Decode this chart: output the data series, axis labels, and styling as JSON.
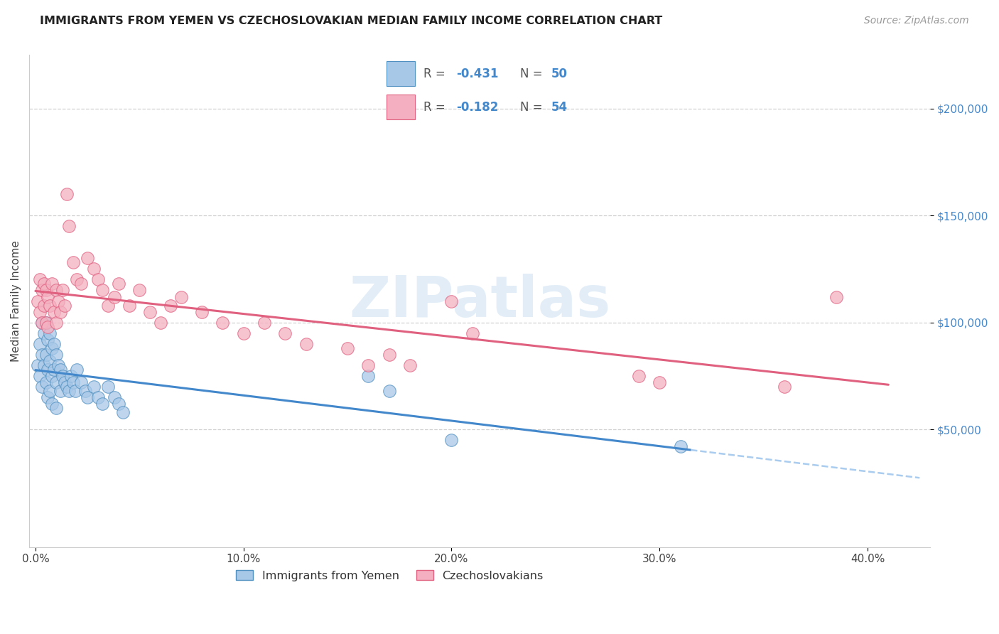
{
  "title": "IMMIGRANTS FROM YEMEN VS CZECHOSLOVAKIAN MEDIAN FAMILY INCOME CORRELATION CHART",
  "source": "Source: ZipAtlas.com",
  "ylabel": "Median Family Income",
  "xlabel_ticks": [
    "0.0%",
    "10.0%",
    "20.0%",
    "30.0%",
    "40.0%"
  ],
  "xlabel_vals": [
    0.0,
    0.1,
    0.2,
    0.3,
    0.4
  ],
  "ytick_labels": [
    "$50,000",
    "$100,000",
    "$150,000",
    "$200,000"
  ],
  "ytick_vals": [
    50000,
    100000,
    150000,
    200000
  ],
  "ylim": [
    -5000,
    225000
  ],
  "xlim": [
    -0.003,
    0.43
  ],
  "watermark": "ZIPatlas",
  "legend_entry1_R": "-0.431",
  "legend_entry1_N": "50",
  "legend_entry1_label": "Immigrants from Yemen",
  "legend_entry2_R": "-0.182",
  "legend_entry2_N": "54",
  "legend_entry2_label": "Czechoslovakians",
  "color_blue_fill": "#a8c8e8",
  "color_pink_fill": "#f4b0c0",
  "color_blue_edge": "#5090c0",
  "color_pink_edge": "#e06080",
  "color_blue_line": "#4488cc",
  "color_pink_line": "#e06080",
  "color_dashed": "#aaccee",
  "yemen_x": [
    0.001,
    0.002,
    0.002,
    0.003,
    0.003,
    0.003,
    0.004,
    0.004,
    0.005,
    0.005,
    0.005,
    0.006,
    0.006,
    0.006,
    0.007,
    0.007,
    0.007,
    0.008,
    0.008,
    0.008,
    0.009,
    0.009,
    0.01,
    0.01,
    0.01,
    0.011,
    0.012,
    0.012,
    0.013,
    0.014,
    0.015,
    0.016,
    0.017,
    0.018,
    0.019,
    0.02,
    0.022,
    0.024,
    0.025,
    0.028,
    0.03,
    0.032,
    0.035,
    0.038,
    0.04,
    0.042,
    0.16,
    0.17,
    0.2,
    0.31
  ],
  "yemen_y": [
    80000,
    90000,
    75000,
    100000,
    85000,
    70000,
    95000,
    80000,
    100000,
    85000,
    72000,
    92000,
    78000,
    65000,
    95000,
    82000,
    68000,
    88000,
    75000,
    62000,
    90000,
    78000,
    85000,
    72000,
    60000,
    80000,
    78000,
    68000,
    75000,
    72000,
    70000,
    68000,
    75000,
    72000,
    68000,
    78000,
    72000,
    68000,
    65000,
    70000,
    65000,
    62000,
    70000,
    65000,
    62000,
    58000,
    75000,
    68000,
    45000,
    42000
  ],
  "czech_x": [
    0.001,
    0.002,
    0.002,
    0.003,
    0.003,
    0.004,
    0.004,
    0.005,
    0.005,
    0.006,
    0.006,
    0.007,
    0.008,
    0.009,
    0.01,
    0.01,
    0.011,
    0.012,
    0.013,
    0.014,
    0.015,
    0.016,
    0.018,
    0.02,
    0.022,
    0.025,
    0.028,
    0.03,
    0.032,
    0.035,
    0.038,
    0.04,
    0.045,
    0.05,
    0.055,
    0.06,
    0.065,
    0.07,
    0.08,
    0.09,
    0.1,
    0.11,
    0.12,
    0.13,
    0.15,
    0.17,
    0.18,
    0.2,
    0.21,
    0.16,
    0.29,
    0.3,
    0.36,
    0.385
  ],
  "czech_y": [
    110000,
    120000,
    105000,
    115000,
    100000,
    118000,
    108000,
    115000,
    100000,
    112000,
    98000,
    108000,
    118000,
    105000,
    115000,
    100000,
    110000,
    105000,
    115000,
    108000,
    160000,
    145000,
    128000,
    120000,
    118000,
    130000,
    125000,
    120000,
    115000,
    108000,
    112000,
    118000,
    108000,
    115000,
    105000,
    100000,
    108000,
    112000,
    105000,
    100000,
    95000,
    100000,
    95000,
    90000,
    88000,
    85000,
    80000,
    110000,
    95000,
    80000,
    75000,
    72000,
    70000,
    112000
  ],
  "title_fontsize": 11.5,
  "source_fontsize": 10,
  "tick_fontsize": 11,
  "ylabel_fontsize": 11
}
